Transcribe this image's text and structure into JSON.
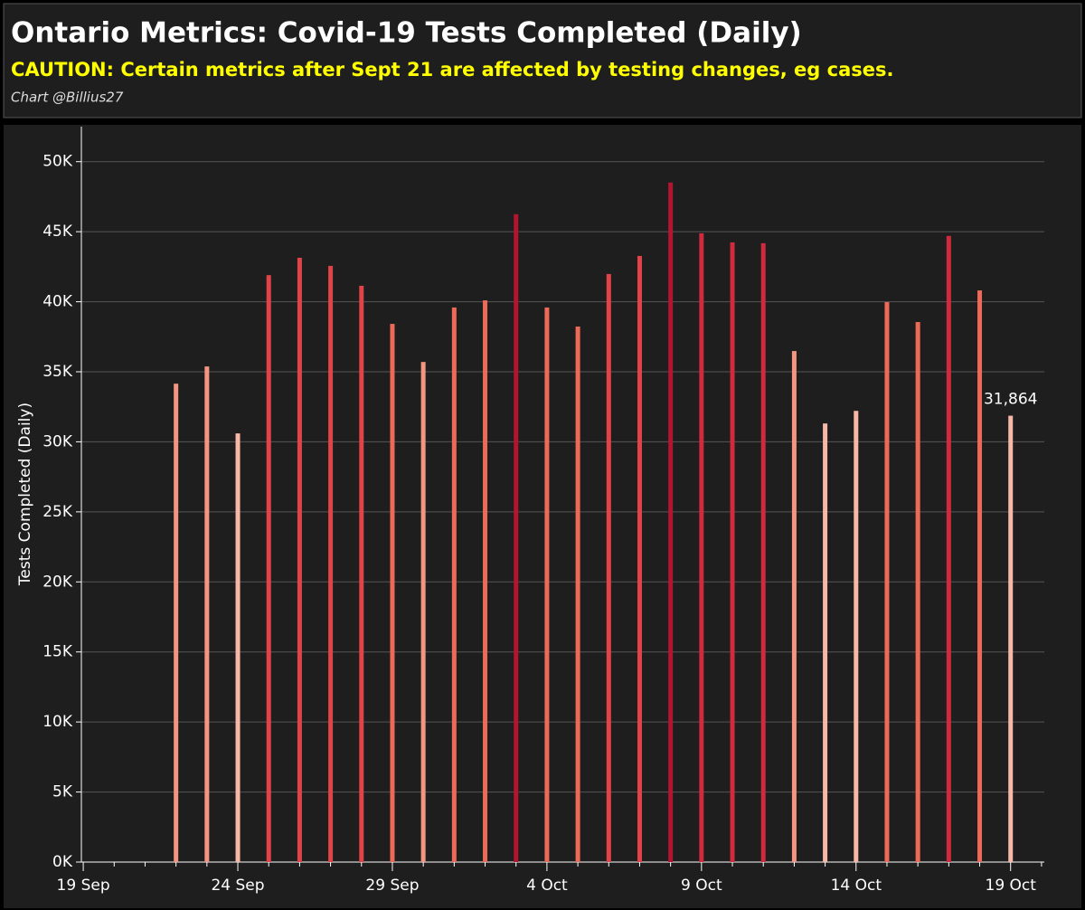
{
  "chart_data": {
    "type": "bar",
    "title": "Ontario Metrics: Covid-19 Tests Completed (Daily)",
    "subtitle": "CAUTION: Certain metrics after Sept 21 are affected by testing changes, eg cases.",
    "credit": "Chart @Billius27",
    "y_label": "Tests Completed (Daily)",
    "categories": [
      "19 Sep",
      null,
      null,
      null,
      null,
      "24 Sep",
      null,
      null,
      null,
      null,
      "29 Sep",
      null,
      null,
      null,
      null,
      "4 Oct",
      null,
      null,
      null,
      null,
      "9 Oct",
      null,
      null,
      null,
      null,
      "14 Oct",
      null,
      null,
      null,
      null,
      "19 Oct",
      null
    ],
    "values": [
      null,
      null,
      null,
      34150,
      35380,
      30600,
      41900,
      43140,
      42560,
      41140,
      38420,
      35700,
      39590,
      40100,
      46250,
      39590,
      38230,
      41980,
      43270,
      48510,
      44890,
      44240,
      44180,
      36480,
      31310,
      32210,
      39970,
      38550,
      44700,
      40810,
      31864,
      null
    ],
    "value_labels": [
      null,
      null,
      null,
      null,
      null,
      null,
      null,
      null,
      null,
      null,
      null,
      null,
      null,
      null,
      null,
      null,
      null,
      null,
      null,
      null,
      null,
      null,
      null,
      null,
      null,
      null,
      null,
      null,
      null,
      null,
      "31,864",
      null
    ],
    "colors": [
      null,
      null,
      null,
      "#f39580",
      "#f39580",
      "#f7b8a6",
      "#e04448",
      "#e04448",
      "#e04448",
      "#e04448",
      "#ec6a57",
      "#f39580",
      "#ec6a57",
      "#ec6a57",
      "#b3142f",
      "#ec6a57",
      "#ec6a57",
      "#e04448",
      "#e04448",
      "#b3142f",
      "#cf2a3e",
      "#cf2a3e",
      "#cf2a3e",
      "#f39580",
      "#f7b8a6",
      "#f7b8a6",
      "#ec6a57",
      "#ec6a57",
      "#cf2a3e",
      "#ec6a57",
      "#f7b8a6",
      null
    ],
    "ylim": [
      0,
      52500
    ],
    "yticks": [
      {
        "value": 0,
        "label": "0K"
      },
      {
        "value": 5000,
        "label": "5K"
      },
      {
        "value": 10000,
        "label": "10K"
      },
      {
        "value": 15000,
        "label": "15K"
      },
      {
        "value": 20000,
        "label": "20K"
      },
      {
        "value": 25000,
        "label": "25K"
      },
      {
        "value": 30000,
        "label": "30K"
      },
      {
        "value": 35000,
        "label": "35K"
      },
      {
        "value": 40000,
        "label": "40K"
      },
      {
        "value": 45000,
        "label": "45K"
      },
      {
        "value": 50000,
        "label": "50K"
      }
    ],
    "grid": true
  }
}
